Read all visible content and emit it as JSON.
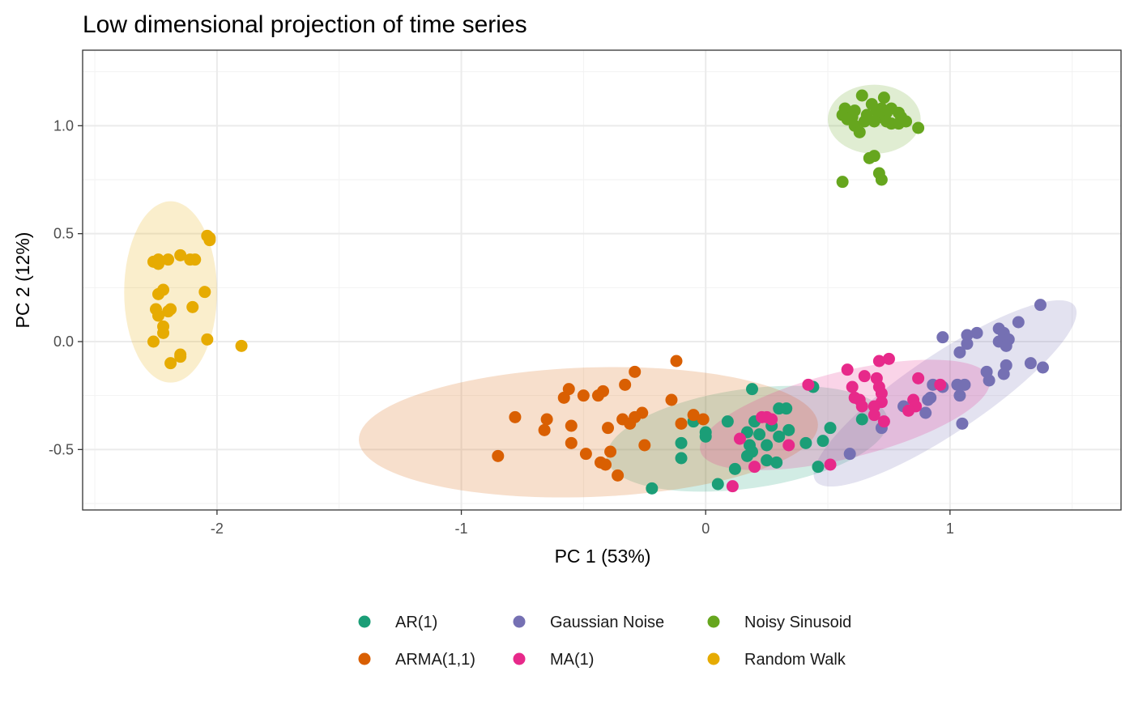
{
  "chart_data": {
    "type": "scatter",
    "title": "Low dimensional projection of time series",
    "xlabel": "PC 1 (53%)",
    "ylabel": "PC 2 (12%)",
    "xlim": [
      -2.55,
      1.7
    ],
    "ylim": [
      -0.78,
      1.35
    ],
    "x_ticks": [
      -2,
      -1,
      0,
      1
    ],
    "x_tick_labels": [
      "-2",
      "-1",
      "0",
      "1"
    ],
    "y_ticks": [
      -0.5,
      0.0,
      0.5,
      1.0
    ],
    "y_tick_labels": [
      "-0.5",
      "0.0",
      "0.5",
      "1.0"
    ],
    "grid": true,
    "legend_position": "bottom",
    "series": [
      {
        "name": "AR(1)",
        "color": "#1b9e77",
        "ellipse": {
          "cx": 0.17,
          "cy": -0.45,
          "rx": 0.58,
          "ry": 0.23,
          "angle_deg": -8
        },
        "points": [
          [
            0.19,
            -0.22
          ],
          [
            0.44,
            -0.21
          ],
          [
            -0.05,
            -0.37
          ],
          [
            0.09,
            -0.37
          ],
          [
            -0.1,
            -0.47
          ],
          [
            0.0,
            -0.42
          ],
          [
            -0.1,
            -0.54
          ],
          [
            0.0,
            -0.44
          ],
          [
            0.2,
            -0.37
          ],
          [
            0.33,
            -0.31
          ],
          [
            0.3,
            -0.31
          ],
          [
            0.34,
            -0.41
          ],
          [
            0.27,
            -0.39
          ],
          [
            0.22,
            -0.43
          ],
          [
            0.17,
            -0.42
          ],
          [
            0.3,
            -0.44
          ],
          [
            0.25,
            -0.48
          ],
          [
            0.18,
            -0.48
          ],
          [
            0.19,
            -0.51
          ],
          [
            0.17,
            -0.53
          ],
          [
            0.25,
            -0.55
          ],
          [
            0.29,
            -0.56
          ],
          [
            0.41,
            -0.47
          ],
          [
            0.48,
            -0.46
          ],
          [
            0.51,
            -0.4
          ],
          [
            0.12,
            -0.59
          ],
          [
            0.05,
            -0.66
          ],
          [
            -0.22,
            -0.68
          ],
          [
            0.46,
            -0.58
          ],
          [
            0.64,
            -0.36
          ]
        ]
      },
      {
        "name": "ARMA(1,1)",
        "color": "#d95f02",
        "ellipse": {
          "cx": -0.48,
          "cy": -0.42,
          "rx": 0.94,
          "ry": 0.3,
          "angle_deg": -2
        },
        "points": [
          [
            -0.12,
            -0.09
          ],
          [
            -0.29,
            -0.14
          ],
          [
            -0.56,
            -0.22
          ],
          [
            -0.33,
            -0.2
          ],
          [
            -0.42,
            -0.23
          ],
          [
            -0.44,
            -0.25
          ],
          [
            -0.58,
            -0.26
          ],
          [
            -0.5,
            -0.25
          ],
          [
            -0.14,
            -0.27
          ],
          [
            -0.26,
            -0.33
          ],
          [
            -0.29,
            -0.35
          ],
          [
            -0.34,
            -0.36
          ],
          [
            -0.31,
            -0.38
          ],
          [
            -0.4,
            -0.4
          ],
          [
            -0.55,
            -0.39
          ],
          [
            -0.65,
            -0.36
          ],
          [
            -0.1,
            -0.38
          ],
          [
            -0.05,
            -0.34
          ],
          [
            -0.01,
            -0.36
          ],
          [
            -0.78,
            -0.35
          ],
          [
            -0.66,
            -0.41
          ],
          [
            -0.55,
            -0.47
          ],
          [
            -0.25,
            -0.48
          ],
          [
            -0.39,
            -0.51
          ],
          [
            -0.49,
            -0.52
          ],
          [
            -0.43,
            -0.56
          ],
          [
            -0.41,
            -0.57
          ],
          [
            -0.36,
            -0.62
          ],
          [
            -0.85,
            -0.53
          ]
        ]
      },
      {
        "name": "Gaussian Noise",
        "color": "#7570b3",
        "ellipse": {
          "cx": 0.98,
          "cy": -0.24,
          "rx": 0.64,
          "ry": 0.18,
          "angle_deg": -34
        },
        "points": [
          [
            1.37,
            0.17
          ],
          [
            1.28,
            0.09
          ],
          [
            0.97,
            0.02
          ],
          [
            1.07,
            0.03
          ],
          [
            1.11,
            0.04
          ],
          [
            1.2,
            0.06
          ],
          [
            1.22,
            0.04
          ],
          [
            1.24,
            0.01
          ],
          [
            1.2,
            0.0
          ],
          [
            1.23,
            -0.02
          ],
          [
            1.07,
            -0.01
          ],
          [
            1.04,
            -0.05
          ],
          [
            1.33,
            -0.1
          ],
          [
            1.38,
            -0.12
          ],
          [
            1.23,
            -0.11
          ],
          [
            1.22,
            -0.15
          ],
          [
            1.15,
            -0.14
          ],
          [
            1.16,
            -0.18
          ],
          [
            0.93,
            -0.2
          ],
          [
            0.97,
            -0.21
          ],
          [
            1.03,
            -0.2
          ],
          [
            1.06,
            -0.2
          ],
          [
            0.92,
            -0.26
          ],
          [
            0.91,
            -0.27
          ],
          [
            1.04,
            -0.25
          ],
          [
            0.81,
            -0.3
          ],
          [
            0.9,
            -0.33
          ],
          [
            0.72,
            -0.4
          ],
          [
            1.05,
            -0.38
          ],
          [
            0.59,
            -0.52
          ]
        ]
      },
      {
        "name": "MA(1)",
        "color": "#e7298a",
        "ellipse": {
          "cx": 0.57,
          "cy": -0.34,
          "rx": 0.61,
          "ry": 0.2,
          "angle_deg": -14
        },
        "points": [
          [
            0.75,
            -0.08
          ],
          [
            0.71,
            -0.09
          ],
          [
            0.58,
            -0.13
          ],
          [
            0.7,
            -0.17
          ],
          [
            0.65,
            -0.16
          ],
          [
            0.6,
            -0.21
          ],
          [
            0.71,
            -0.21
          ],
          [
            0.72,
            -0.24
          ],
          [
            0.42,
            -0.2
          ],
          [
            0.61,
            -0.26
          ],
          [
            0.63,
            -0.27
          ],
          [
            0.72,
            -0.28
          ],
          [
            0.85,
            -0.27
          ],
          [
            0.87,
            -0.17
          ],
          [
            0.96,
            -0.2
          ],
          [
            0.69,
            -0.3
          ],
          [
            0.64,
            -0.3
          ],
          [
            0.86,
            -0.3
          ],
          [
            0.83,
            -0.32
          ],
          [
            0.69,
            -0.34
          ],
          [
            0.73,
            -0.37
          ],
          [
            0.25,
            -0.35
          ],
          [
            0.23,
            -0.35
          ],
          [
            0.27,
            -0.36
          ],
          [
            0.14,
            -0.45
          ],
          [
            0.34,
            -0.48
          ],
          [
            0.51,
            -0.57
          ],
          [
            0.2,
            -0.58
          ],
          [
            0.11,
            -0.67
          ]
        ]
      },
      {
        "name": "Noisy Sinusoid",
        "color": "#66a61e",
        "ellipse": {
          "cx": 0.69,
          "cy": 1.03,
          "rx": 0.19,
          "ry": 0.16,
          "angle_deg": 0
        },
        "points": [
          [
            0.64,
            1.14
          ],
          [
            0.73,
            1.13
          ],
          [
            0.68,
            1.1
          ],
          [
            0.72,
            1.08
          ],
          [
            0.57,
            1.08
          ],
          [
            0.61,
            1.07
          ],
          [
            0.76,
            1.08
          ],
          [
            0.7,
            1.07
          ],
          [
            0.74,
            1.06
          ],
          [
            0.79,
            1.06
          ],
          [
            0.56,
            1.05
          ],
          [
            0.6,
            1.04
          ],
          [
            0.66,
            1.05
          ],
          [
            0.71,
            1.04
          ],
          [
            0.8,
            1.04
          ],
          [
            0.58,
            1.03
          ],
          [
            0.65,
            1.02
          ],
          [
            0.69,
            1.02
          ],
          [
            0.74,
            1.02
          ],
          [
            0.82,
            1.02
          ],
          [
            0.61,
            1.0
          ],
          [
            0.76,
            1.01
          ],
          [
            0.79,
            1.01
          ],
          [
            0.87,
            0.99
          ],
          [
            0.63,
            0.97
          ],
          [
            0.67,
            0.85
          ],
          [
            0.69,
            0.86
          ],
          [
            0.71,
            0.78
          ],
          [
            0.72,
            0.75
          ],
          [
            0.56,
            0.74
          ]
        ]
      },
      {
        "name": "Random Walk",
        "color": "#e6ab02",
        "ellipse": {
          "cx": -2.19,
          "cy": 0.23,
          "rx": 0.19,
          "ry": 0.42,
          "angle_deg": 0
        },
        "points": [
          [
            -2.04,
            0.49
          ],
          [
            -2.03,
            0.48
          ],
          [
            -2.03,
            0.47
          ],
          [
            -2.15,
            0.4
          ],
          [
            -2.11,
            0.38
          ],
          [
            -2.09,
            0.38
          ],
          [
            -2.2,
            0.38
          ],
          [
            -2.26,
            0.37
          ],
          [
            -2.24,
            0.36
          ],
          [
            -2.24,
            0.38
          ],
          [
            -2.22,
            0.24
          ],
          [
            -2.05,
            0.23
          ],
          [
            -2.24,
            0.22
          ],
          [
            -2.1,
            0.16
          ],
          [
            -2.25,
            0.15
          ],
          [
            -2.19,
            0.15
          ],
          [
            -2.2,
            0.14
          ],
          [
            -2.24,
            0.12
          ],
          [
            -2.22,
            0.07
          ],
          [
            -2.22,
            0.04
          ],
          [
            -2.26,
            0.0
          ],
          [
            -2.04,
            0.01
          ],
          [
            -2.15,
            -0.06
          ],
          [
            -2.15,
            -0.07
          ],
          [
            -2.19,
            -0.1
          ],
          [
            -1.9,
            -0.02
          ]
        ]
      }
    ]
  }
}
